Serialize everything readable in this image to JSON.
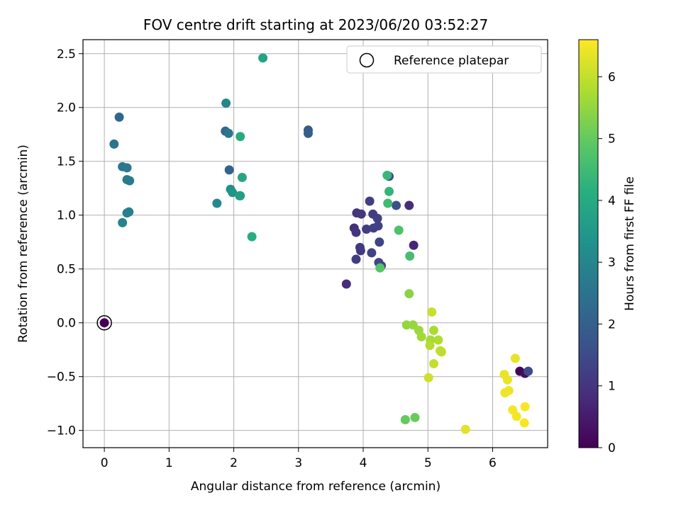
{
  "chart_data": {
    "type": "scatter",
    "title": "FOV centre drift starting at 2023/06/20 03:52:27",
    "xlabel": "Angular distance from reference (arcmin)",
    "ylabel": "Rotation from reference (arcmin)",
    "xlim": [
      -0.33,
      6.85
    ],
    "ylim": [
      -1.16,
      2.63
    ],
    "xticks": [
      0,
      1,
      2,
      3,
      4,
      5,
      6
    ],
    "yticks": [
      -1.0,
      -0.5,
      0.0,
      0.5,
      1.0,
      1.5,
      2.0,
      2.5
    ],
    "ytick_labels": [
      "−1.0",
      "−0.5",
      "0.0",
      "0.5",
      "1.0",
      "1.5",
      "2.0",
      "2.5"
    ],
    "grid": true,
    "legend": {
      "placement": "top-right",
      "entries": [
        "Reference platepar"
      ]
    },
    "reference_point": {
      "x": 0.0,
      "y": 0.0
    },
    "colorbar": {
      "label": "Hours from first FF file",
      "range": [
        0,
        6.6
      ],
      "ticks": [
        0,
        1,
        2,
        3,
        4,
        5,
        6
      ],
      "colormap": "viridis"
    },
    "series": [
      {
        "points": [
          {
            "x": 0.0,
            "y": 0.0,
            "h": 0.0
          },
          {
            "x": 6.42,
            "y": -0.45,
            "h": 0.1
          },
          {
            "x": 6.5,
            "y": -0.47,
            "h": 0.2
          },
          {
            "x": 4.78,
            "y": 0.72,
            "h": 0.7
          },
          {
            "x": 4.71,
            "y": 1.09,
            "h": 0.8
          },
          {
            "x": 3.74,
            "y": 0.36,
            "h": 0.85
          },
          {
            "x": 3.86,
            "y": 0.88,
            "h": 0.9
          },
          {
            "x": 3.89,
            "y": 0.84,
            "h": 0.95
          },
          {
            "x": 3.9,
            "y": 1.02,
            "h": 1.0
          },
          {
            "x": 3.97,
            "y": 1.01,
            "h": 1.05
          },
          {
            "x": 3.95,
            "y": 0.7,
            "h": 1.1
          },
          {
            "x": 3.96,
            "y": 0.67,
            "h": 1.1
          },
          {
            "x": 3.89,
            "y": 0.59,
            "h": 1.15
          },
          {
            "x": 4.05,
            "y": 0.87,
            "h": 1.15
          },
          {
            "x": 4.1,
            "y": 1.13,
            "h": 1.2
          },
          {
            "x": 4.15,
            "y": 1.01,
            "h": 1.2
          },
          {
            "x": 4.16,
            "y": 0.88,
            "h": 1.25
          },
          {
            "x": 4.22,
            "y": 0.97,
            "h": 1.25
          },
          {
            "x": 4.23,
            "y": 0.9,
            "h": 1.3
          },
          {
            "x": 4.13,
            "y": 0.65,
            "h": 1.3
          },
          {
            "x": 4.25,
            "y": 0.75,
            "h": 1.35
          },
          {
            "x": 4.24,
            "y": 0.56,
            "h": 1.4
          },
          {
            "x": 4.28,
            "y": 0.53,
            "h": 1.4
          },
          {
            "x": 6.55,
            "y": -0.45,
            "h": 1.5
          },
          {
            "x": 4.51,
            "y": 1.09,
            "h": 1.6
          },
          {
            "x": 4.4,
            "y": 1.36,
            "h": 1.7
          },
          {
            "x": 3.15,
            "y": 1.79,
            "h": 1.9
          },
          {
            "x": 3.15,
            "y": 1.76,
            "h": 1.95
          },
          {
            "x": 1.93,
            "y": 1.42,
            "h": 2.1
          },
          {
            "x": 0.23,
            "y": 1.91,
            "h": 2.2
          },
          {
            "x": 1.87,
            "y": 1.78,
            "h": 2.3
          },
          {
            "x": 0.15,
            "y": 1.66,
            "h": 2.5
          },
          {
            "x": 1.92,
            "y": 1.76,
            "h": 2.55
          },
          {
            "x": 0.28,
            "y": 1.45,
            "h": 2.6
          },
          {
            "x": 0.35,
            "y": 1.44,
            "h": 2.65
          },
          {
            "x": 0.35,
            "y": 1.33,
            "h": 2.7
          },
          {
            "x": 0.39,
            "y": 1.32,
            "h": 2.75
          },
          {
            "x": 0.35,
            "y": 1.02,
            "h": 2.8
          },
          {
            "x": 0.38,
            "y": 1.03,
            "h": 2.85
          },
          {
            "x": 0.28,
            "y": 0.93,
            "h": 2.9
          },
          {
            "x": 1.88,
            "y": 2.04,
            "h": 3.0
          },
          {
            "x": 1.74,
            "y": 1.11,
            "h": 3.1
          },
          {
            "x": 1.95,
            "y": 1.24,
            "h": 3.3
          },
          {
            "x": 1.98,
            "y": 1.21,
            "h": 3.4
          },
          {
            "x": 2.09,
            "y": 1.18,
            "h": 3.6
          },
          {
            "x": 2.1,
            "y": 1.18,
            "h": 3.7
          },
          {
            "x": 2.45,
            "y": 2.46,
            "h": 3.8
          },
          {
            "x": 2.13,
            "y": 1.35,
            "h": 3.9
          },
          {
            "x": 2.1,
            "y": 1.73,
            "h": 4.0
          },
          {
            "x": 2.28,
            "y": 0.8,
            "h": 4.1
          },
          {
            "x": 4.4,
            "y": 1.22,
            "h": 4.3
          },
          {
            "x": 4.37,
            "y": 1.37,
            "h": 4.4
          },
          {
            "x": 4.38,
            "y": 1.11,
            "h": 4.5
          },
          {
            "x": 4.72,
            "y": 0.62,
            "h": 4.6
          },
          {
            "x": 4.55,
            "y": 0.86,
            "h": 4.7
          },
          {
            "x": 4.26,
            "y": 0.51,
            "h": 4.8
          },
          {
            "x": 4.65,
            "y": -0.9,
            "h": 5.0
          },
          {
            "x": 4.8,
            "y": -0.88,
            "h": 5.05
          },
          {
            "x": 4.71,
            "y": 0.27,
            "h": 5.4
          },
          {
            "x": 4.67,
            "y": -0.02,
            "h": 5.5
          },
          {
            "x": 4.77,
            "y": -0.02,
            "h": 5.55
          },
          {
            "x": 4.86,
            "y": -0.07,
            "h": 5.6
          },
          {
            "x": 4.9,
            "y": -0.13,
            "h": 5.65
          },
          {
            "x": 5.04,
            "y": -0.16,
            "h": 5.7
          },
          {
            "x": 5.09,
            "y": -0.07,
            "h": 5.75
          },
          {
            "x": 5.16,
            "y": -0.16,
            "h": 5.8
          },
          {
            "x": 5.03,
            "y": -0.21,
            "h": 5.85
          },
          {
            "x": 5.19,
            "y": -0.26,
            "h": 5.9
          },
          {
            "x": 5.21,
            "y": -0.27,
            "h": 5.95
          },
          {
            "x": 5.09,
            "y": -0.38,
            "h": 6.0
          },
          {
            "x": 5.06,
            "y": 0.1,
            "h": 6.05
          },
          {
            "x": 5.01,
            "y": -0.51,
            "h": 6.1
          },
          {
            "x": 5.58,
            "y": -0.99,
            "h": 6.3
          },
          {
            "x": 6.35,
            "y": -0.33,
            "h": 6.35
          },
          {
            "x": 6.18,
            "y": -0.48,
            "h": 6.4
          },
          {
            "x": 6.23,
            "y": -0.53,
            "h": 6.4
          },
          {
            "x": 6.25,
            "y": -0.63,
            "h": 6.45
          },
          {
            "x": 6.19,
            "y": -0.65,
            "h": 6.45
          },
          {
            "x": 6.31,
            "y": -0.81,
            "h": 6.5
          },
          {
            "x": 6.37,
            "y": -0.87,
            "h": 6.5
          },
          {
            "x": 6.5,
            "y": -0.78,
            "h": 6.55
          },
          {
            "x": 6.49,
            "y": -0.93,
            "h": 6.55
          }
        ]
      }
    ]
  }
}
